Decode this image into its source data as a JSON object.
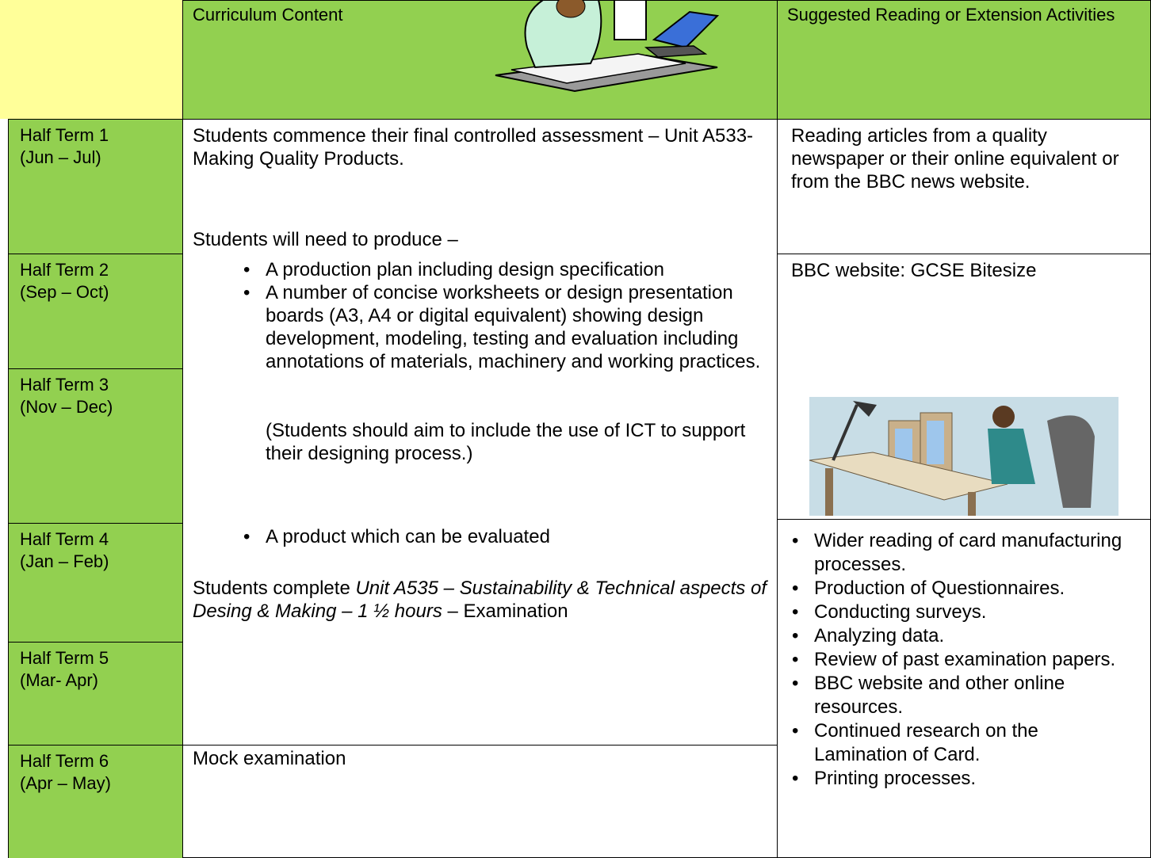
{
  "header": {
    "curriculum": "Curriculum Content",
    "reading": "Suggested Reading or Extension Activities"
  },
  "terms": [
    {
      "name": "Half Term 1",
      "months": "(Jun – Jul)"
    },
    {
      "name": "Half Term 2",
      "months": "(Sep – Oct)"
    },
    {
      "name": "Half Term 3",
      "months": "(Nov – Dec)"
    },
    {
      "name": "Half Term 4",
      "months": "(Jan – Feb)"
    },
    {
      "name": "Half Term 5",
      "months": "(Mar- Apr)"
    },
    {
      "name": "Half Term 6",
      "months": "(Apr – May)"
    }
  ],
  "curriculum": {
    "intro": "Students commence their final controlled assessment – Unit A533- Making Quality Products.",
    "needs": "Students will need to produce –",
    "bullets": [
      "A production plan including design specification",
      "A number of concise worksheets or design presentation boards (A3, A4 or digital equivalent) showing design development, modeling, testing and evaluation including annotations of materials, machinery and working practices."
    ],
    "note": "(Students should aim to include the use of ICT to support their designing process.)",
    "last_bullet": "A product which can be evaluated",
    "exam": {
      "prefix": "Students complete",
      "italic": "Unit A535 – Sustainability & Technical aspects of Desing & Making – 1 ½ hours",
      "suffix": "– Examination"
    },
    "mock": "Mock examination"
  },
  "extension": {
    "reading": "Reading articles from a quality newspaper or their online equivalent or from the BBC news website.",
    "bbc": "BBC website: GCSE Bitesize",
    "activities": [
      "Wider reading of card manufacturing processes.",
      "Production of Questionnaires.",
      "Conducting surveys.",
      "Analyzing data.",
      "Review of past examination papers.",
      "BBC website and other online resources.",
      "Continued research on the Lamination of Card.",
      "Printing processes."
    ]
  }
}
